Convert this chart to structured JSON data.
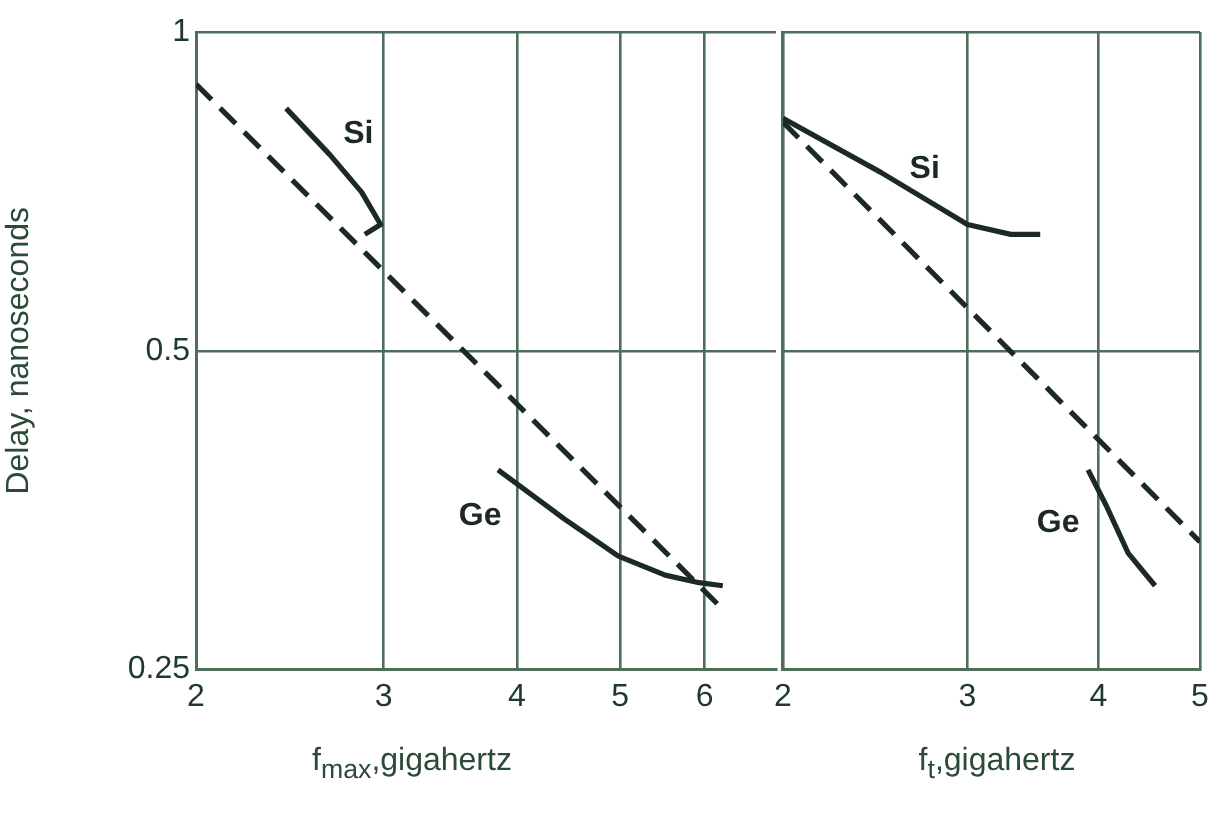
{
  "chart_data": [
    {
      "type": "line",
      "xlabel": "f$_{max}$,gigahertz",
      "ylabel": "Delay, nanoseconds",
      "log": "xy",
      "xlim": [
        2,
        7
      ],
      "ylim": [
        0.25,
        1
      ],
      "xticks": [
        2,
        3,
        4,
        5,
        6
      ],
      "yticks": [
        0.25,
        0.5,
        1
      ],
      "grid": true,
      "marker": "none",
      "series": [
        {
          "color": "#1c2a24",
          "line_style": "dashed",
          "x": [
            2,
            6.24
          ],
          "values": [
            0.893,
            0.285
          ]
        },
        {
          "color": "#1c2a24",
          "line_style": "solid",
          "x": [
            2.43,
            2.67,
            2.86,
            2.98,
            2.88
          ],
          "values": [
            0.847,
            0.766,
            0.706,
            0.658,
            0.644
          ]
        },
        {
          "color": "#1c2a24",
          "line_style": "solid",
          "x": [
            3.84,
            4.43,
            4.98,
            5.51,
            5.93,
            6.24
          ],
          "values": [
            0.386,
            0.347,
            0.32,
            0.307,
            0.302,
            0.3
          ]
        }
      ],
      "annotations": [
        "Si",
        "Ge"
      ]
    },
    {
      "type": "line",
      "xlabel": "f$_{t}$,gigahertz",
      "log": "xy",
      "xlim": [
        2,
        5
      ],
      "ylim": [
        0.25,
        1
      ],
      "xticks": [
        2,
        3,
        4,
        5
      ],
      "yticks": [
        0.25,
        0.5,
        1
      ],
      "tick_labels": "x",
      "grid": true,
      "marker": "none",
      "series": [
        {
          "color": "#1c2a24",
          "line_style": "dashed",
          "x": [
            2,
            5
          ],
          "values": [
            0.822,
            0.33
          ]
        },
        {
          "color": "#1c2a24",
          "line_style": "solid",
          "x": [
            2,
            2.48,
            3,
            3.3,
            3.52
          ],
          "values": [
            0.829,
            0.737,
            0.658,
            0.644,
            0.644
          ]
        },
        {
          "color": "#1c2a24",
          "line_style": "solid",
          "x": [
            3.91,
            4.07,
            4.27,
            4.53
          ],
          "values": [
            0.386,
            0.357,
            0.322,
            0.3
          ]
        }
      ],
      "annotations": [
        "Si",
        "Ge"
      ]
    }
  ]
}
